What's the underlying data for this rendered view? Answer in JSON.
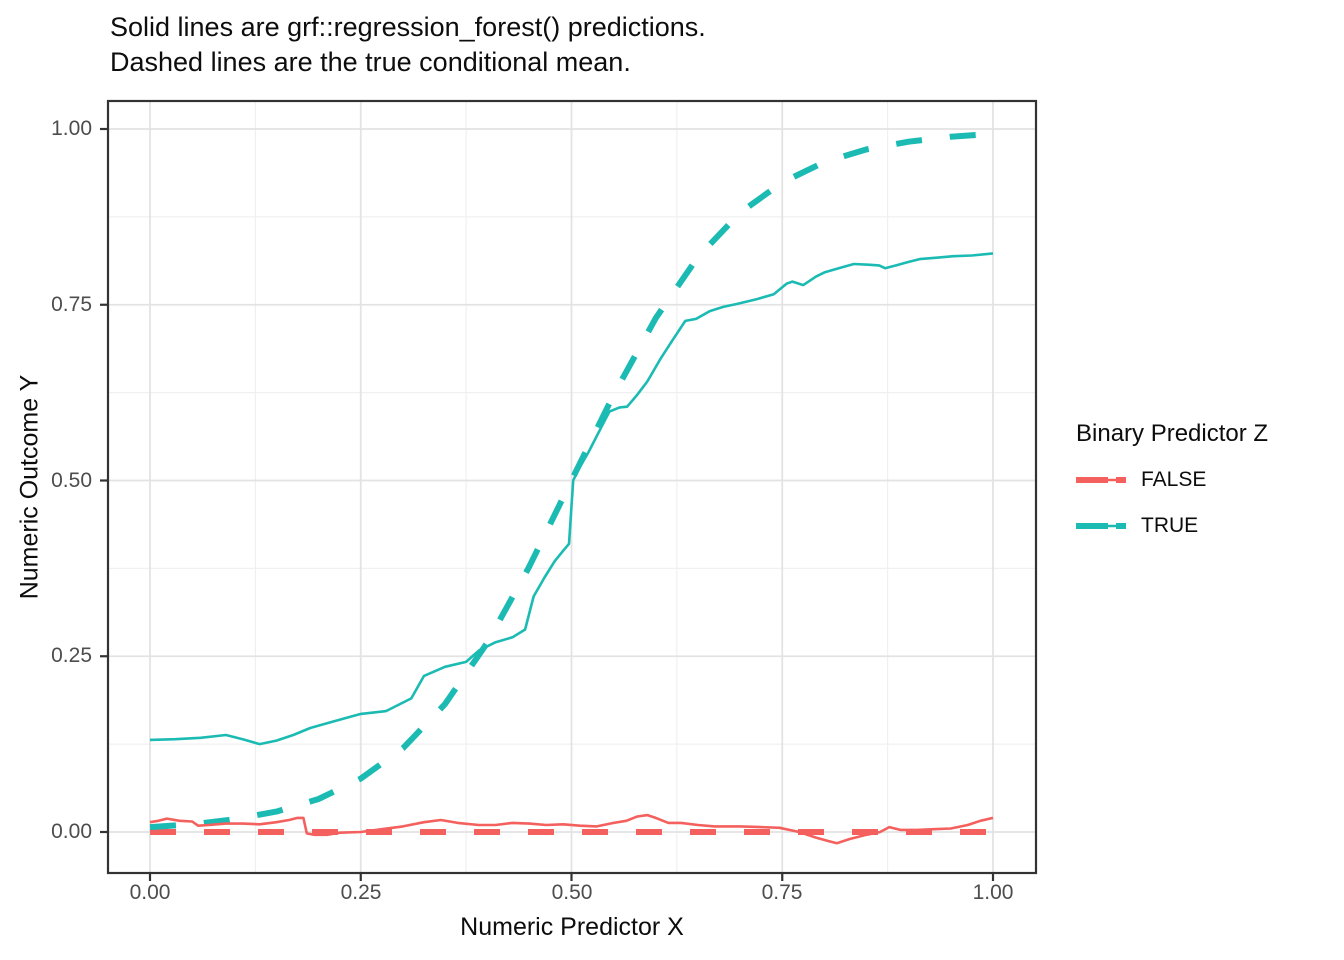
{
  "title": {
    "line1": "Solid lines are grf::regression_forest() predictions.",
    "line2": "Dashed lines are the true conditional mean."
  },
  "chart_data": {
    "type": "line",
    "title": "Solid lines are grf::regression_forest() predictions. Dashed lines are the true conditional mean.",
    "xlabel": "Numeric Predictor X",
    "ylabel": "Numeric Outcome Y",
    "xlim": [
      0,
      1
    ],
    "ylim": [
      0,
      1
    ],
    "x_ticks": [
      "0.00",
      "0.25",
      "0.50",
      "0.75",
      "1.00"
    ],
    "y_ticks": [
      "0.00",
      "0.25",
      "0.50",
      "0.75",
      "1.00"
    ],
    "grid": "major and minor gridlines, white panel, dark border (theme_bw)",
    "colors": {
      "false_group": "#F3605D",
      "true_group": "#1BBBB4",
      "grid_major": "#E3E3E3",
      "grid_minor": "#F0F0F0",
      "panel_border": "#333333",
      "tick_label": "#4D4D4D"
    },
    "legend": {
      "title": "Binary Predictor Z",
      "position": "right",
      "entries": [
        {
          "label": "FALSE",
          "color": "#F3605D"
        },
        {
          "label": "TRUE",
          "color": "#1BBBB4"
        }
      ]
    },
    "series": [
      {
        "name": "true-conditional-mean-FALSE",
        "group": "FALSE",
        "style": "dashed",
        "color": "#F3605D",
        "x": [
          0,
          1
        ],
        "y": [
          0,
          0
        ]
      },
      {
        "name": "true-conditional-mean-TRUE",
        "group": "TRUE",
        "style": "dashed",
        "color": "#1BBBB4",
        "x": [
          0,
          0.05,
          0.1,
          0.15,
          0.2,
          0.25,
          0.3,
          0.35,
          0.4,
          0.45,
          0.5,
          0.55,
          0.6,
          0.65,
          0.7,
          0.75,
          0.8,
          0.85,
          0.9,
          0.95,
          1
        ],
        "y": [
          0.007,
          0.011,
          0.018,
          0.029,
          0.047,
          0.076,
          0.119,
          0.182,
          0.269,
          0.378,
          0.5,
          0.622,
          0.731,
          0.818,
          0.881,
          0.924,
          0.953,
          0.971,
          0.982,
          0.989,
          0.993
        ]
      },
      {
        "name": "forest-prediction-FALSE",
        "group": "FALSE",
        "style": "solid",
        "color": "#F3605D",
        "x": [
          0,
          0.01,
          0.02,
          0.035,
          0.05,
          0.057,
          0.07,
          0.09,
          0.11,
          0.13,
          0.15,
          0.165,
          0.175,
          0.182,
          0.186,
          0.195,
          0.21,
          0.225,
          0.25,
          0.275,
          0.3,
          0.325,
          0.345,
          0.365,
          0.39,
          0.41,
          0.43,
          0.45,
          0.47,
          0.49,
          0.51,
          0.53,
          0.55,
          0.565,
          0.578,
          0.59,
          0.6,
          0.615,
          0.63,
          0.65,
          0.67,
          0.7,
          0.725,
          0.747,
          0.77,
          0.79,
          0.805,
          0.815,
          0.83,
          0.85,
          0.866,
          0.877,
          0.89,
          0.91,
          0.93,
          0.95,
          0.97,
          0.985,
          1
        ],
        "y": [
          0.014,
          0.016,
          0.019,
          0.016,
          0.015,
          0.009,
          0.01,
          0.012,
          0.012,
          0.011,
          0.014,
          0.017,
          0.02,
          0.02,
          -0.002,
          -0.004,
          -0.004,
          -0.001,
          0,
          0.004,
          0.008,
          0.014,
          0.017,
          0.013,
          0.01,
          0.01,
          0.013,
          0.012,
          0.01,
          0.011,
          0.009,
          0.008,
          0.013,
          0.016,
          0.022,
          0.024,
          0.02,
          0.013,
          0.013,
          0.01,
          0.008,
          0.008,
          0.007,
          0.006,
          0,
          -0.008,
          -0.013,
          -0.016,
          -0.01,
          -0.004,
          0,
          0.007,
          0.003,
          0.003,
          0.004,
          0.005,
          0.01,
          0.016,
          0.02
        ]
      },
      {
        "name": "forest-prediction-TRUE",
        "group": "TRUE",
        "style": "solid",
        "color": "#1BBBB4",
        "x": [
          0,
          0.03,
          0.06,
          0.09,
          0.11,
          0.13,
          0.15,
          0.17,
          0.19,
          0.22,
          0.25,
          0.28,
          0.31,
          0.325,
          0.35,
          0.375,
          0.39,
          0.41,
          0.43,
          0.445,
          0.455,
          0.468,
          0.48,
          0.49,
          0.497,
          0.502,
          0.508,
          0.52,
          0.535,
          0.545,
          0.557,
          0.566,
          0.578,
          0.59,
          0.605,
          0.62,
          0.635,
          0.648,
          0.664,
          0.68,
          0.696,
          0.72,
          0.74,
          0.755,
          0.762,
          0.775,
          0.79,
          0.8,
          0.82,
          0.835,
          0.852,
          0.865,
          0.872,
          0.885,
          0.9,
          0.913,
          0.935,
          0.953,
          0.975,
          1
        ],
        "y": [
          0.131,
          0.132,
          0.134,
          0.138,
          0.132,
          0.125,
          0.13,
          0.138,
          0.148,
          0.158,
          0.168,
          0.172,
          0.19,
          0.222,
          0.235,
          0.242,
          0.258,
          0.27,
          0.277,
          0.288,
          0.335,
          0.362,
          0.385,
          0.4,
          0.41,
          0.5,
          0.515,
          0.54,
          0.575,
          0.598,
          0.604,
          0.605,
          0.622,
          0.641,
          0.672,
          0.7,
          0.727,
          0.73,
          0.741,
          0.747,
          0.751,
          0.758,
          0.765,
          0.78,
          0.783,
          0.778,
          0.79,
          0.796,
          0.803,
          0.808,
          0.807,
          0.806,
          0.802,
          0.806,
          0.811,
          0.815,
          0.817,
          0.819,
          0.82,
          0.823
        ]
      }
    ]
  }
}
